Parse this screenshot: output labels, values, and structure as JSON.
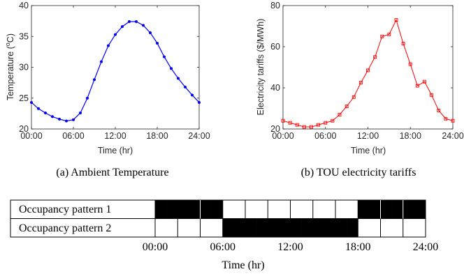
{
  "chart_data": [
    {
      "type": "line",
      "xlabel": "Time (hr)",
      "ylabel_base": "Temperature (",
      "ylabel_sup": "o",
      "ylabel_tail": "C)",
      "xlim": [
        0,
        24
      ],
      "ylim": [
        20,
        40
      ],
      "xticks": [
        0,
        6,
        12,
        18,
        24
      ],
      "xtick_labels": [
        "00:00",
        "06:00",
        "12:00",
        "18:00",
        "24:00"
      ],
      "yticks": [
        20,
        25,
        30,
        35,
        40
      ],
      "ytick_labels": [
        "20",
        "25",
        "30",
        "35",
        "40"
      ],
      "series": [
        {
          "color": "#0000ff",
          "marker": "dot",
          "x": [
            0,
            1,
            2,
            3,
            4,
            5,
            6,
            7,
            8,
            9,
            10,
            11,
            12,
            13,
            14,
            15,
            16,
            17,
            18,
            19,
            20,
            21,
            22,
            23,
            24
          ],
          "y": [
            24.3,
            23.3,
            22.6,
            22.0,
            21.6,
            21.3,
            21.5,
            22.6,
            25.0,
            28.0,
            30.9,
            33.5,
            35.3,
            36.6,
            37.4,
            37.4,
            36.8,
            35.6,
            33.9,
            31.7,
            29.8,
            28.2,
            26.8,
            25.5,
            24.3
          ]
        }
      ],
      "caption": "(a) Ambient Temperature"
    },
    {
      "type": "line",
      "xlabel": "Time (hr)",
      "ylabel": "Electricity tariffs ($/MWh)",
      "xlim": [
        0,
        24
      ],
      "ylim": [
        20,
        80
      ],
      "xticks": [
        0,
        6,
        12,
        18,
        24
      ],
      "xtick_labels": [
        "00:00",
        "06:00",
        "12:00",
        "18:00",
        "24:00"
      ],
      "yticks": [
        20,
        40,
        60,
        80
      ],
      "ytick_labels": [
        "20",
        "40",
        "60",
        "80"
      ],
      "series": [
        {
          "color": "#ff0000",
          "marker": "square",
          "x": [
            0,
            1,
            2,
            3,
            4,
            5,
            6,
            7,
            8,
            9,
            10,
            11,
            12,
            13,
            14,
            15,
            16,
            17,
            18,
            19,
            20,
            21,
            22,
            23,
            24
          ],
          "y": [
            24.0,
            23.0,
            22.0,
            21.0,
            21.0,
            22.0,
            23.0,
            24.0,
            27.0,
            31.0,
            35.5,
            42.5,
            48.5,
            55.0,
            65.0,
            66.0,
            73.0,
            61.5,
            51.5,
            41.0,
            43.0,
            36.5,
            29.0,
            25.0,
            24.0
          ]
        }
      ],
      "caption": "(b) TOU electricity tariffs"
    },
    {
      "type": "heatmap",
      "rows": [
        "Occupancy pattern 1",
        "Occupancy pattern 2"
      ],
      "x_ticks": [
        "00:00",
        "06:00",
        "12:00",
        "18:00",
        "24:00"
      ],
      "xlabel": "Time (hr)",
      "slot_hours": 1,
      "occupied_color": "#000000",
      "vacant_color": "#ffffff",
      "occupancy": [
        [
          1,
          1,
          1,
          1,
          1,
          1,
          0,
          0,
          0,
          0,
          0,
          0,
          0,
          0,
          0,
          0,
          0,
          0,
          1,
          1,
          1,
          1,
          1,
          1
        ],
        [
          0,
          0,
          0,
          0,
          0,
          0,
          1,
          1,
          1,
          1,
          1,
          1,
          1,
          1,
          1,
          1,
          1,
          1,
          0,
          0,
          0,
          0,
          0,
          0
        ]
      ],
      "row1_dividers": [
        4,
        6,
        8,
        10,
        12,
        14,
        16,
        18,
        20,
        22
      ],
      "row2_dividers": [
        2,
        4,
        6,
        18,
        20,
        22
      ]
    }
  ]
}
